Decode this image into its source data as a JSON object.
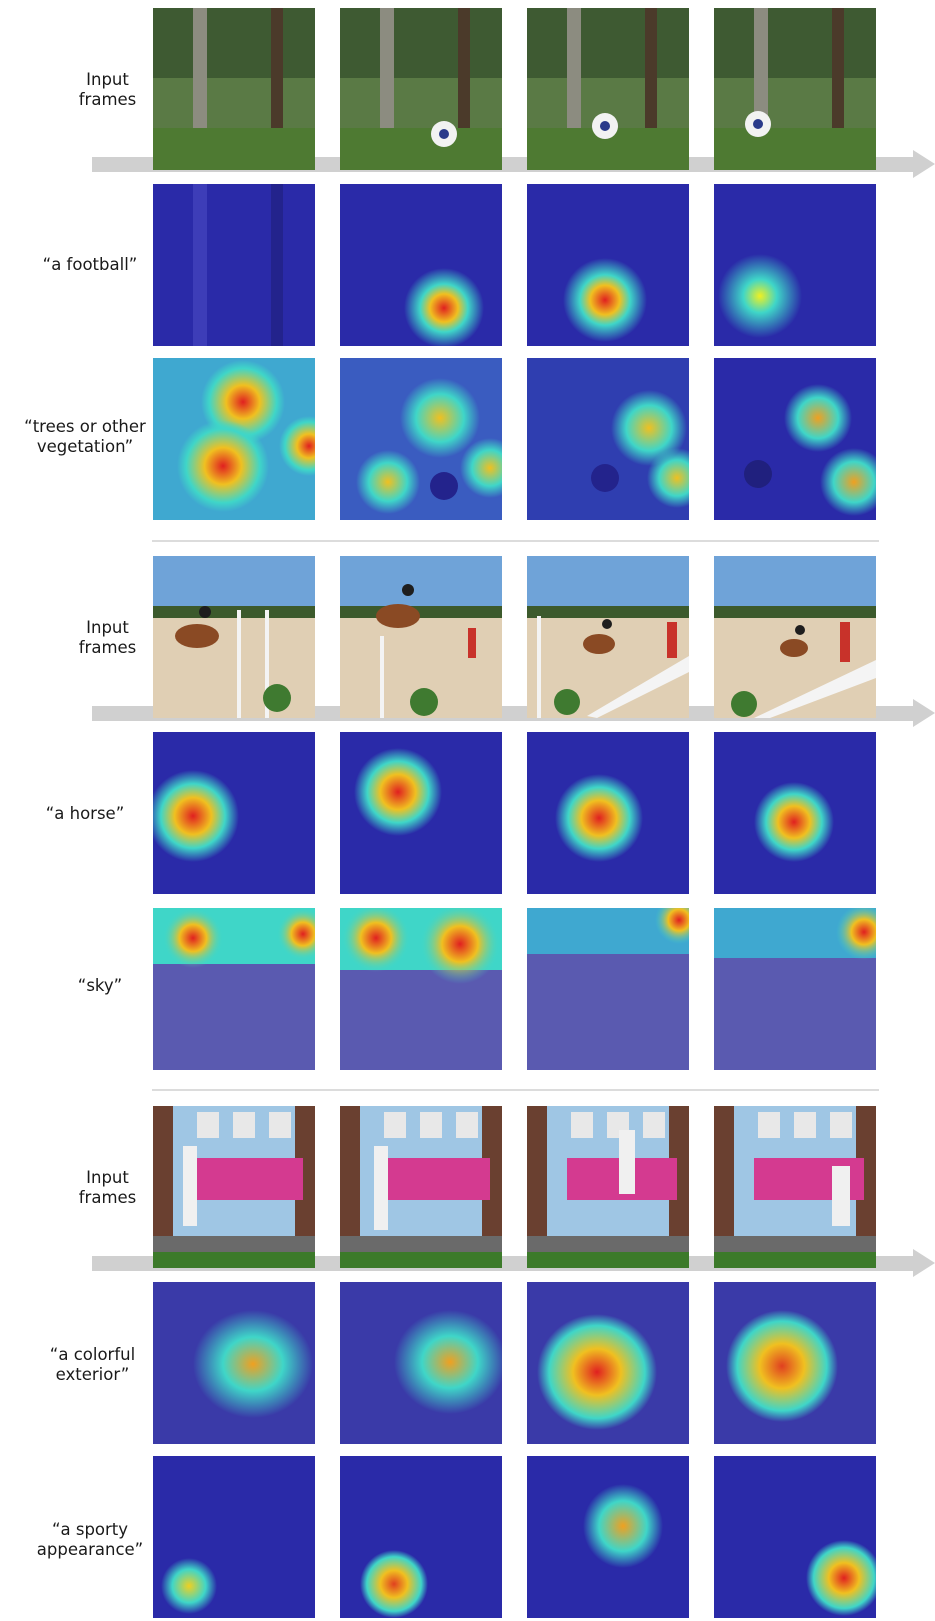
{
  "groups": [
    {
      "id": "football",
      "rows": [
        {
          "label": "Input\nframes",
          "type": "input"
        },
        {
          "label": "“a football”",
          "type": "heatmap"
        },
        {
          "label": "“trees or other\nvegetation”",
          "type": "heatmap"
        }
      ]
    },
    {
      "id": "horse",
      "rows": [
        {
          "label": "Input\nframes",
          "type": "input"
        },
        {
          "label": "“a horse”",
          "type": "heatmap"
        },
        {
          "label": "“sky”",
          "type": "heatmap"
        }
      ]
    },
    {
      "id": "skater",
      "rows": [
        {
          "label": "Input\nframes",
          "type": "input"
        },
        {
          "label": "“a colorful\nexterior”",
          "type": "heatmap"
        },
        {
          "label": "“a sporty\nappearance”",
          "type": "heatmap"
        }
      ]
    }
  ],
  "colors": {
    "arrow": "#d0d0d0",
    "divider": "#dcdcdc",
    "heatmap_low": "#2a2aa8",
    "heatmap_mid": "#3fd6c8",
    "heatmap_high": "#e02020"
  }
}
